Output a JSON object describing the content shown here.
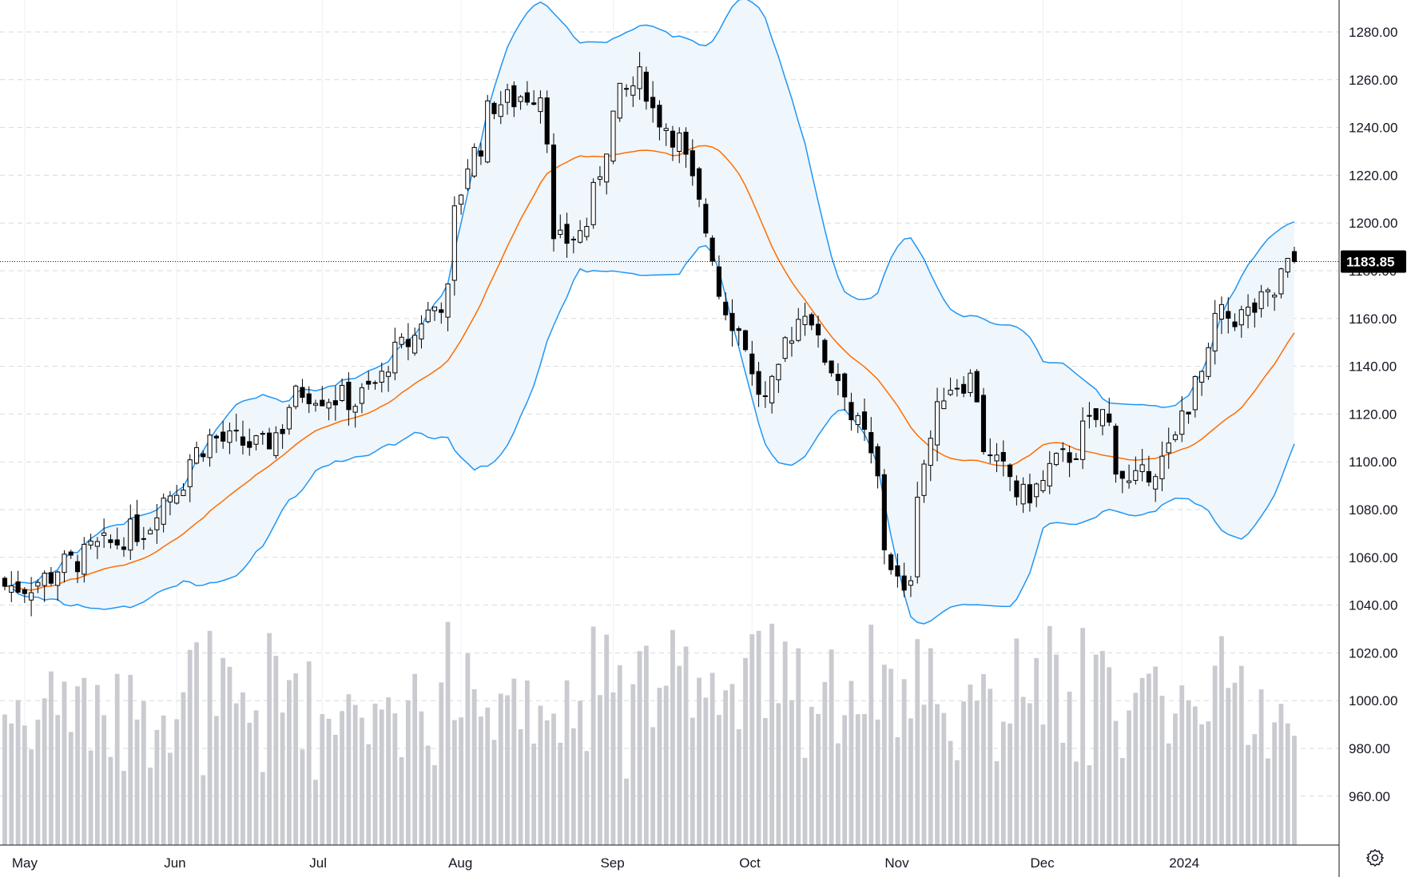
{
  "chart_data": {
    "type": "candlestick",
    "instrument_last_price": "1183.85",
    "y_axis": {
      "ticks": [
        "1280.00",
        "1260.00",
        "1240.00",
        "1220.00",
        "1200.00",
        "1180.00",
        "1160.00",
        "1140.00",
        "1120.00",
        "1100.00",
        "1080.00",
        "1060.00",
        "1040.00",
        "1020.00",
        "1000.00",
        "980.00",
        "960.00"
      ],
      "range": [
        942,
        1289
      ],
      "position": "right"
    },
    "x_axis": {
      "labels": [
        "May",
        "Jun",
        "Jul",
        "Aug",
        "Sep",
        "Oct",
        "Nov",
        "Dec",
        "2024"
      ]
    },
    "grid": true,
    "indicators": [
      "Bollinger Bands (upper, basis, lower)",
      "Volume"
    ],
    "colors": {
      "up_candle": "#ffffff",
      "down_candle": "#000000",
      "candle_outline": "#000000",
      "bollinger_band": "#2196f3",
      "bollinger_fill": "#eff6fc",
      "basis": "#ff6d00",
      "volume": "#c9cbd0",
      "price_tag": "#000000",
      "grid": "#d6d9de"
    },
    "ohlc_anchor_points": [
      {
        "date": "2023-05-01",
        "close": 1048
      },
      {
        "date": "2023-05-12",
        "close": 1060
      },
      {
        "date": "2023-05-25",
        "close": 1072
      },
      {
        "date": "2023-06-01",
        "close": 1090
      },
      {
        "date": "2023-06-08",
        "close": 1110
      },
      {
        "date": "2023-06-20",
        "close": 1106
      },
      {
        "date": "2023-06-28",
        "close": 1130
      },
      {
        "date": "2023-07-10",
        "close": 1125
      },
      {
        "date": "2023-07-20",
        "close": 1150
      },
      {
        "date": "2023-07-28",
        "close": 1170
      },
      {
        "date": "2023-08-02",
        "close": 1225
      },
      {
        "date": "2023-08-08",
        "close": 1250
      },
      {
        "date": "2023-08-17",
        "close": 1255
      },
      {
        "date": "2023-08-21",
        "close": 1190
      },
      {
        "date": "2023-08-28",
        "close": 1200
      },
      {
        "date": "2023-09-01",
        "close": 1245
      },
      {
        "date": "2023-09-07",
        "close": 1260
      },
      {
        "date": "2023-09-18",
        "close": 1225
      },
      {
        "date": "2023-09-22",
        "close": 1188
      },
      {
        "date": "2023-09-27",
        "close": 1160
      },
      {
        "date": "2023-10-04",
        "close": 1125
      },
      {
        "date": "2023-10-12",
        "close": 1165
      },
      {
        "date": "2023-10-18",
        "close": 1140
      },
      {
        "date": "2023-10-25",
        "close": 1110
      },
      {
        "date": "2023-10-30",
        "close": 1065
      },
      {
        "date": "2023-11-02",
        "close": 1042
      },
      {
        "date": "2023-11-06",
        "close": 1090
      },
      {
        "date": "2023-11-10",
        "close": 1130
      },
      {
        "date": "2023-11-16",
        "close": 1135
      },
      {
        "date": "2023-11-21",
        "close": 1100
      },
      {
        "date": "2023-11-28",
        "close": 1085
      },
      {
        "date": "2023-12-07",
        "close": 1103
      },
      {
        "date": "2023-12-14",
        "close": 1120
      },
      {
        "date": "2023-12-20",
        "close": 1090
      },
      {
        "date": "2023-12-27",
        "close": 1100
      },
      {
        "date": "2024-01-02",
        "close": 1125
      },
      {
        "date": "2024-01-08",
        "close": 1160
      },
      {
        "date": "2024-01-15",
        "close": 1162
      },
      {
        "date": "2024-01-19",
        "close": 1170
      },
      {
        "date": "2024-01-24",
        "close": 1183.85
      }
    ]
  }
}
